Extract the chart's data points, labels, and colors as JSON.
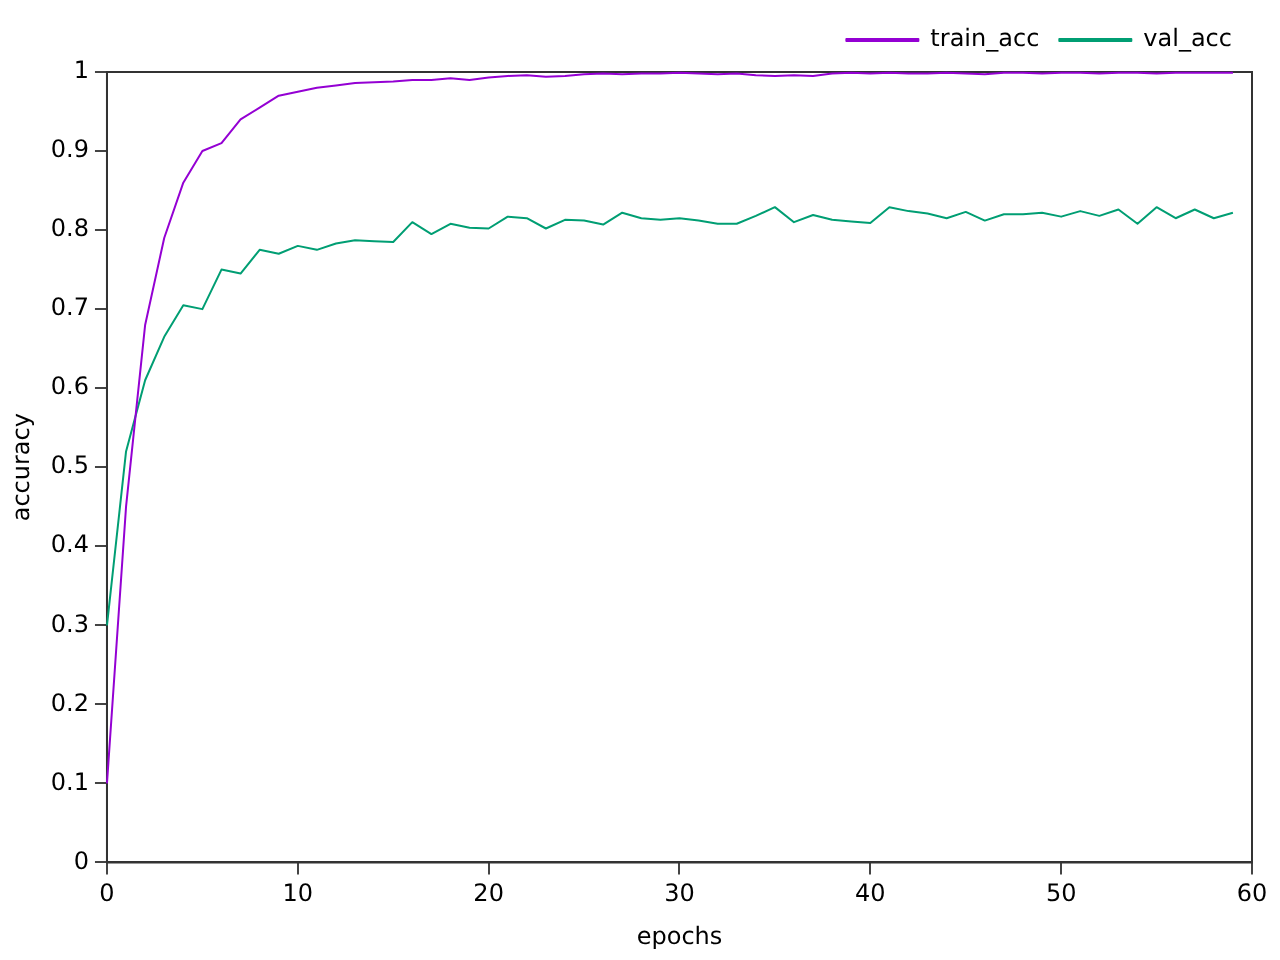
{
  "chart_data": {
    "type": "line",
    "xlabel": "epochs",
    "ylabel": "accuracy",
    "x": [
      0,
      1,
      2,
      3,
      4,
      5,
      6,
      7,
      8,
      9,
      10,
      11,
      12,
      13,
      14,
      15,
      16,
      17,
      18,
      19,
      20,
      21,
      22,
      23,
      24,
      25,
      26,
      27,
      28,
      29,
      30,
      31,
      32,
      33,
      34,
      35,
      36,
      37,
      38,
      39,
      40,
      41,
      42,
      43,
      44,
      45,
      46,
      47,
      48,
      49,
      50,
      51,
      52,
      53,
      54,
      55,
      56,
      57,
      58,
      59
    ],
    "series": [
      {
        "name": "train_acc",
        "color": "#9400d3",
        "values": [
          0.1,
          0.45,
          0.68,
          0.79,
          0.86,
          0.9,
          0.91,
          0.94,
          0.955,
          0.97,
          0.975,
          0.98,
          0.983,
          0.986,
          0.987,
          0.988,
          0.99,
          0.99,
          0.992,
          0.99,
          0.993,
          0.995,
          0.996,
          0.994,
          0.995,
          0.997,
          0.998,
          0.997,
          0.998,
          0.998,
          0.999,
          0.998,
          0.997,
          0.998,
          0.996,
          0.995,
          0.996,
          0.995,
          0.998,
          0.999,
          0.998,
          0.999,
          0.998,
          0.998,
          0.999,
          0.998,
          0.997,
          0.999,
          0.999,
          0.998,
          0.999,
          0.999,
          0.998,
          0.999,
          0.999,
          0.998,
          0.999,
          0.999,
          0.999,
          0.999
        ]
      },
      {
        "name": "val_acc",
        "color": "#009e73",
        "values": [
          0.3,
          0.52,
          0.61,
          0.665,
          0.705,
          0.7,
          0.75,
          0.745,
          0.775,
          0.77,
          0.78,
          0.775,
          0.783,
          0.787,
          0.786,
          0.785,
          0.81,
          0.795,
          0.808,
          0.803,
          0.802,
          0.817,
          0.815,
          0.802,
          0.813,
          0.812,
          0.807,
          0.822,
          0.815,
          0.813,
          0.815,
          0.812,
          0.808,
          0.808,
          0.818,
          0.829,
          0.81,
          0.819,
          0.813,
          0.811,
          0.809,
          0.829,
          0.824,
          0.821,
          0.815,
          0.823,
          0.812,
          0.82,
          0.82,
          0.822,
          0.817,
          0.824,
          0.818,
          0.826,
          0.808,
          0.829,
          0.815,
          0.826,
          0.815,
          0.822
        ]
      }
    ],
    "xlim": [
      0,
      60
    ],
    "xticks": [
      0,
      10,
      20,
      30,
      40,
      50,
      60
    ],
    "ylim": [
      0,
      1
    ],
    "yticks": [
      0,
      0.1,
      0.2,
      0.3,
      0.4,
      0.5,
      0.6,
      0.7,
      0.8,
      0.9,
      1
    ],
    "legend": "top right",
    "marker": "none",
    "line_style": "solid"
  }
}
